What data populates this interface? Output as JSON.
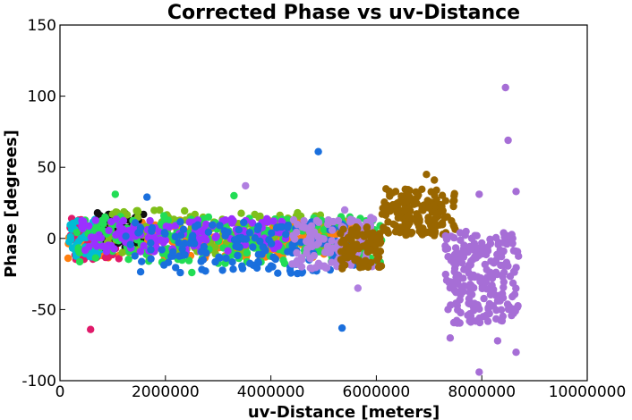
{
  "chart_data": {
    "type": "scatter",
    "title": "Corrected Phase vs uv-Distance",
    "xlabel": "uv-Distance [meters]",
    "ylabel": "Phase [degrees]",
    "xlim": [
      0,
      10000000
    ],
    "ylim": [
      -100,
      150
    ],
    "x_ticks": [
      {
        "value": 0,
        "label": "0"
      },
      {
        "value": 2000000,
        "label": "2000000"
      },
      {
        "value": 4000000,
        "label": "4000000"
      },
      {
        "value": 6000000,
        "label": "6000000"
      },
      {
        "value": 8000000,
        "label": "8000000"
      },
      {
        "value": 10000000,
        "label": "10000000"
      }
    ],
    "y_ticks": [
      {
        "value": 150,
        "label": "150"
      },
      {
        "value": 100,
        "label": "100"
      },
      {
        "value": 50,
        "label": "50"
      },
      {
        "value": 0,
        "label": "0"
      },
      {
        "value": -50,
        "label": "-50"
      },
      {
        "value": -100,
        "label": "-100"
      }
    ],
    "grid": false,
    "legend": "none",
    "series": [
      {
        "color": "#ff7f0e",
        "xrange": [
          150000,
          5500000
        ],
        "yrange": [
          -14,
          13
        ],
        "count": 220,
        "seed": 11
      },
      {
        "color": "#e01a6a",
        "xrange": [
          180000,
          1200000
        ],
        "yrange": [
          -15,
          14
        ],
        "count": 90,
        "seed": 12
      },
      {
        "color": "#00bcd4",
        "xrange": [
          150000,
          800000
        ],
        "yrange": [
          -13,
          14
        ],
        "count": 60,
        "seed": 13
      },
      {
        "color": "#111111",
        "xrange": [
          700000,
          1600000
        ],
        "yrange": [
          -8,
          18
        ],
        "count": 70,
        "seed": 14
      },
      {
        "color": "#7fbf1a",
        "xrange": [
          900000,
          5200000
        ],
        "yrange": [
          -12,
          20
        ],
        "count": 160,
        "seed": 15
      },
      {
        "color": "#22dd55",
        "xrange": [
          300000,
          6200000
        ],
        "yrange": [
          -18,
          16
        ],
        "count": 220,
        "seed": 16
      },
      {
        "color": "#9b30ff",
        "xrange": [
          400000,
          4300000
        ],
        "yrange": [
          -10,
          14
        ],
        "count": 150,
        "seed": 17
      },
      {
        "color": "#1a6fdd",
        "xrange": [
          1200000,
          5600000
        ],
        "yrange": [
          -25,
          12
        ],
        "count": 160,
        "seed": 18
      },
      {
        "color": "#b07fe0",
        "xrange": [
          4400000,
          6000000
        ],
        "yrange": [
          -22,
          15
        ],
        "count": 110,
        "seed": 19
      },
      {
        "color": "#996600",
        "xrange": [
          5300000,
          6100000
        ],
        "yrange": [
          -22,
          8
        ],
        "count": 90,
        "seed": 20
      },
      {
        "color": "#996600",
        "xrange": [
          6100000,
          7500000
        ],
        "yrange": [
          2,
          35
        ],
        "count": 160,
        "seed": 21
      },
      {
        "color": "#a66ed6",
        "xrange": [
          7300000,
          8700000
        ],
        "yrange": [
          -60,
          5
        ],
        "count": 220,
        "seed": 22
      }
    ],
    "points": [
      {
        "x": 580000,
        "y": -64,
        "color": "#e01a6a"
      },
      {
        "x": 4900000,
        "y": 61,
        "color": "#1a6fdd"
      },
      {
        "x": 5350000,
        "y": -63,
        "color": "#1a6fdd"
      },
      {
        "x": 8450000,
        "y": 106,
        "color": "#a66ed6"
      },
      {
        "x": 8500000,
        "y": 69,
        "color": "#a66ed6"
      },
      {
        "x": 8650000,
        "y": 33,
        "color": "#a66ed6"
      },
      {
        "x": 8650000,
        "y": -80,
        "color": "#a66ed6"
      },
      {
        "x": 7950000,
        "y": -94,
        "color": "#a66ed6"
      },
      {
        "x": 7950000,
        "y": 31,
        "color": "#a66ed6"
      },
      {
        "x": 3520000,
        "y": 37,
        "color": "#b07fe0"
      },
      {
        "x": 1650000,
        "y": 29,
        "color": "#1a6fdd"
      },
      {
        "x": 1050000,
        "y": 31,
        "color": "#22dd55"
      },
      {
        "x": 3300000,
        "y": 30,
        "color": "#22dd55"
      },
      {
        "x": 2500000,
        "y": -24,
        "color": "#22dd55"
      },
      {
        "x": 5400000,
        "y": 20,
        "color": "#b07fe0"
      },
      {
        "x": 5650000,
        "y": -35,
        "color": "#b07fe0"
      },
      {
        "x": 6950000,
        "y": 45,
        "color": "#996600"
      },
      {
        "x": 7100000,
        "y": 41,
        "color": "#996600"
      },
      {
        "x": 7400000,
        "y": -70,
        "color": "#a66ed6"
      },
      {
        "x": 8300000,
        "y": -72,
        "color": "#a66ed6"
      }
    ]
  }
}
